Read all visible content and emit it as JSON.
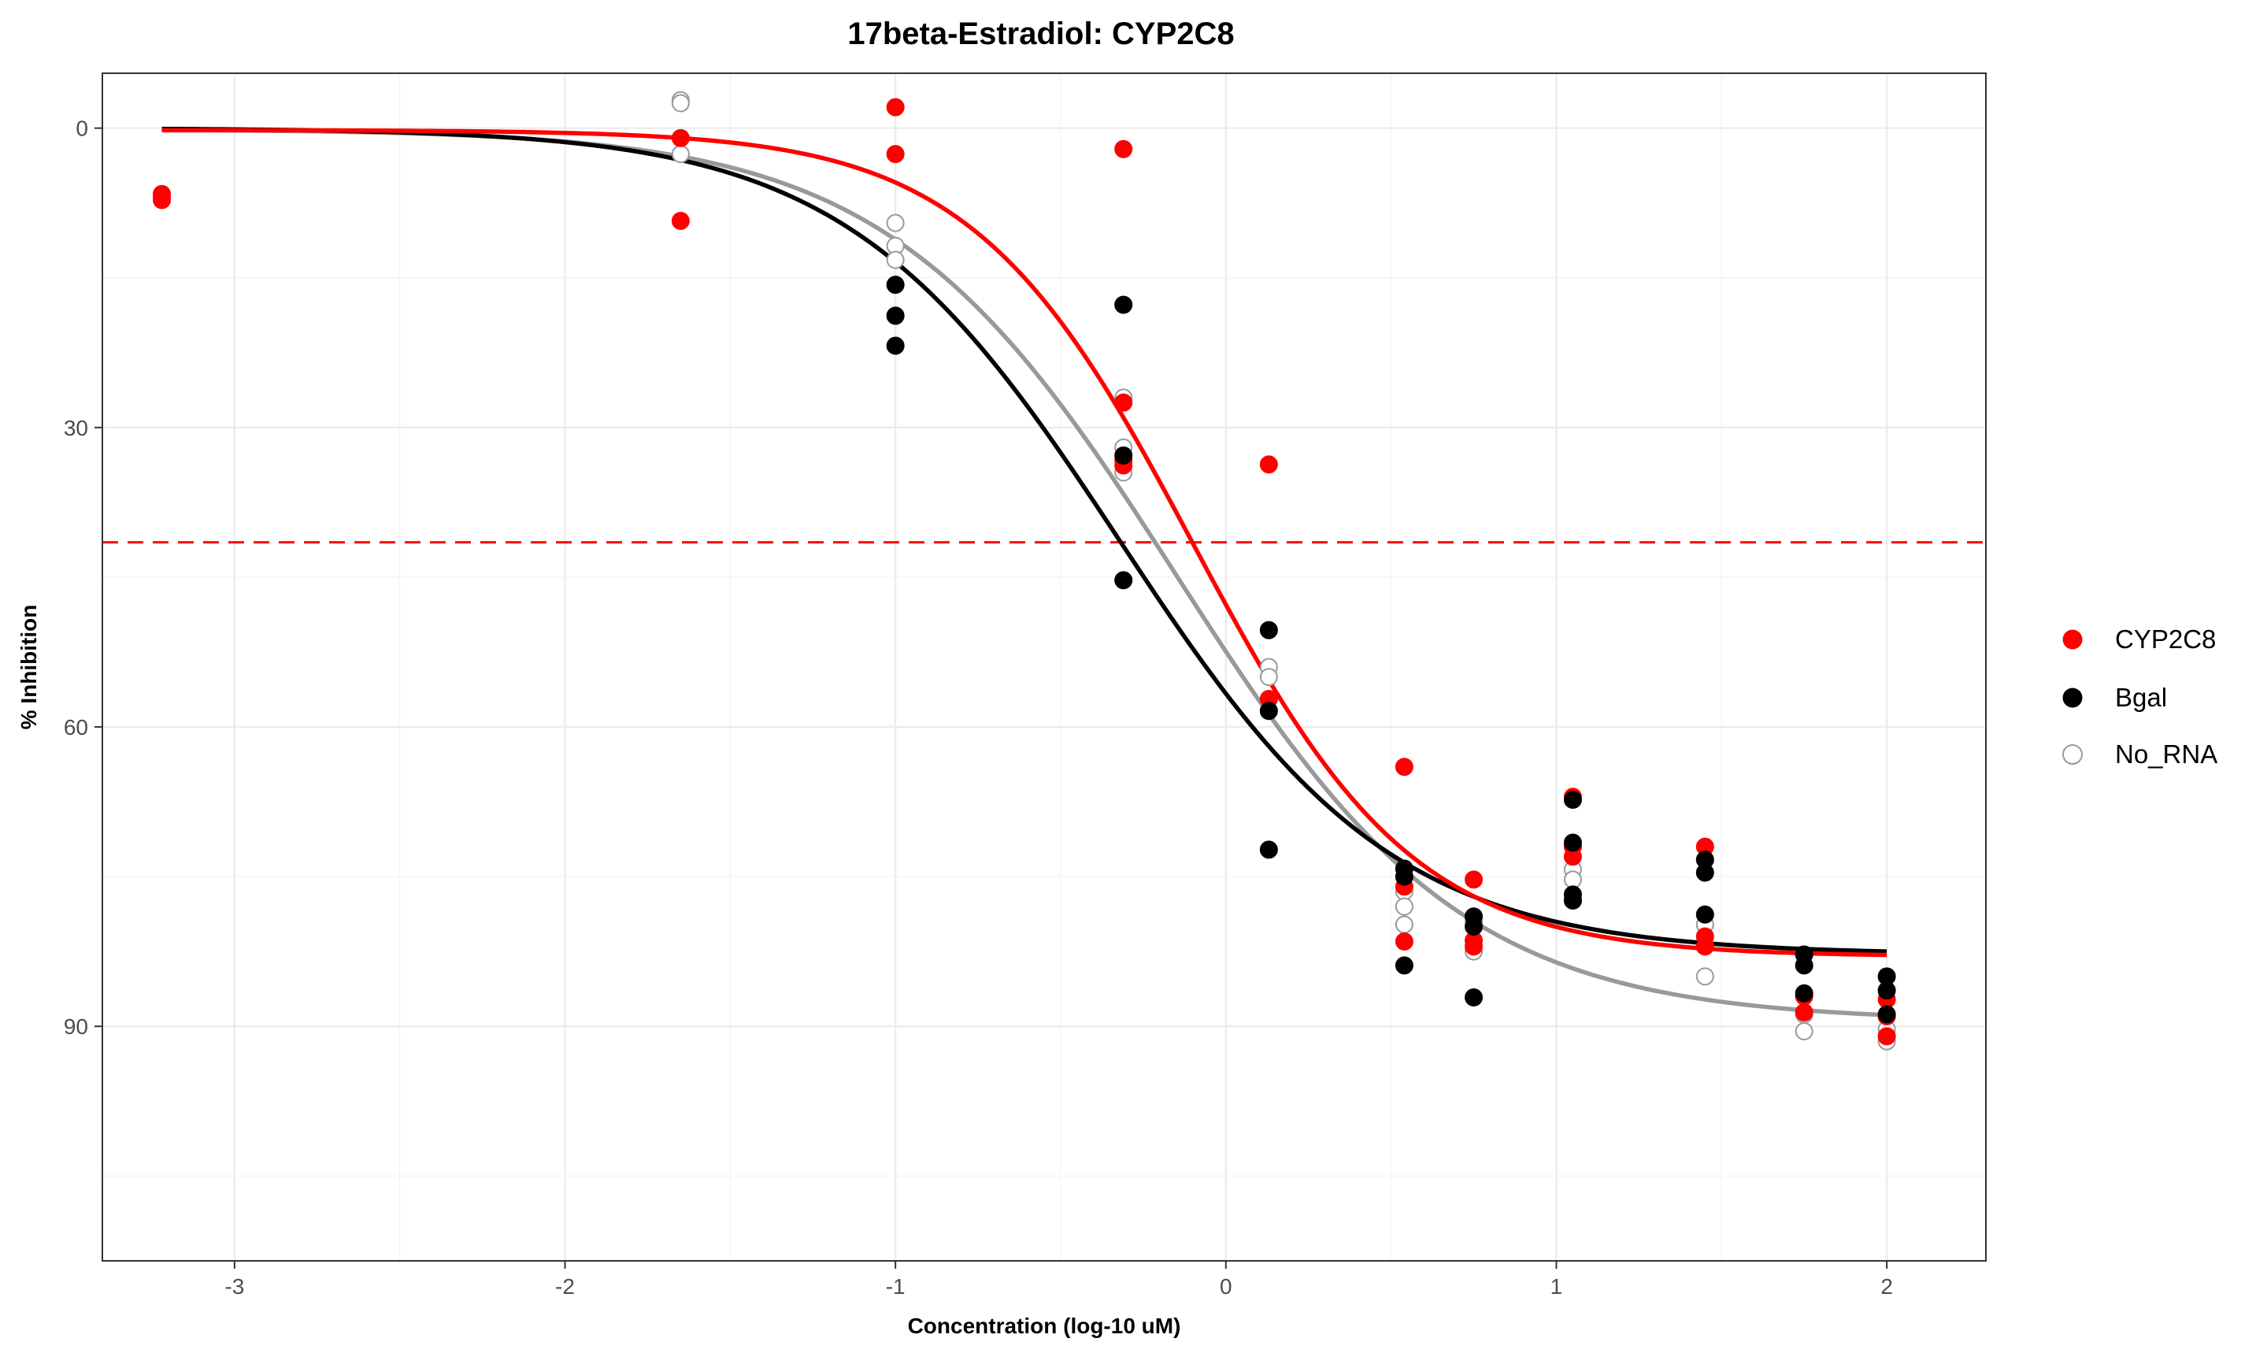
{
  "chart_data": {
    "type": "scatter",
    "title": "17beta-Estradiol: CYP2C8",
    "xlabel": "Concentration (log-10 uM)",
    "ylabel": "% Inhibition",
    "xlim": [
      -3.4,
      2.3
    ],
    "ylim": [
      -5.5,
      113.5
    ],
    "y_reversed": true,
    "x_ticks": [
      -3,
      -2,
      -1,
      0,
      1,
      2
    ],
    "x_tick_labels": [
      "-3",
      "-2",
      "-1",
      "0",
      "1",
      "2"
    ],
    "y_ticks": [
      0,
      30,
      60,
      90
    ],
    "y_tick_labels": [
      "0",
      "30",
      "60",
      "90"
    ],
    "grid": true,
    "legend_position": "right",
    "reference_line": {
      "y": 41.5,
      "style": "dashed",
      "color": "#ff0000"
    },
    "series": [
      {
        "name": "CYP2C8",
        "color": "#ff0000",
        "marker": "filled-circle",
        "points": [
          [
            -3.22,
            6.6
          ],
          [
            -3.22,
            7.0
          ],
          [
            -3.22,
            7.2
          ],
          [
            -1.65,
            1.0
          ],
          [
            -1.65,
            9.3
          ],
          [
            -1.0,
            -2.1
          ],
          [
            -1.0,
            2.6
          ],
          [
            -0.31,
            2.1
          ],
          [
            -0.31,
            27.5
          ],
          [
            -0.31,
            33.3
          ],
          [
            -0.31,
            33.8
          ],
          [
            0.13,
            33.7
          ],
          [
            0.13,
            57.2
          ],
          [
            0.54,
            64.0
          ],
          [
            0.54,
            76.0
          ],
          [
            0.54,
            81.5
          ],
          [
            0.75,
            75.3
          ],
          [
            0.75,
            81.4
          ],
          [
            0.75,
            82.0
          ],
          [
            1.05,
            67.0
          ],
          [
            1.05,
            72.0
          ],
          [
            1.05,
            73.0
          ],
          [
            1.45,
            72.0
          ],
          [
            1.45,
            81.0
          ],
          [
            1.45,
            82.0
          ],
          [
            1.75,
            87.0
          ],
          [
            1.75,
            88.6
          ],
          [
            2.0,
            87.3
          ],
          [
            2.0,
            89.0
          ],
          [
            2.0,
            91.0
          ]
        ],
        "fit": {
          "top": 0.2,
          "bottom": 83.0,
          "log_ic50": -0.1,
          "hill": 1.3
        }
      },
      {
        "name": "Bgal",
        "color": "#000000",
        "marker": "filled-circle",
        "points": [
          [
            -1.0,
            15.7
          ],
          [
            -1.0,
            18.8
          ],
          [
            -1.0,
            21.8
          ],
          [
            -0.31,
            17.7
          ],
          [
            -0.31,
            32.8
          ],
          [
            -0.31,
            45.3
          ],
          [
            0.13,
            50.3
          ],
          [
            0.13,
            58.4
          ],
          [
            0.13,
            72.3
          ],
          [
            0.54,
            74.2
          ],
          [
            0.54,
            75.0
          ],
          [
            0.54,
            83.9
          ],
          [
            0.75,
            79.0
          ],
          [
            0.75,
            80.0
          ],
          [
            0.75,
            87.1
          ],
          [
            1.05,
            67.3
          ],
          [
            1.05,
            71.6
          ],
          [
            1.05,
            76.8
          ],
          [
            1.05,
            77.4
          ],
          [
            1.45,
            73.3
          ],
          [
            1.45,
            74.6
          ],
          [
            1.45,
            78.8
          ],
          [
            1.75,
            82.8
          ],
          [
            1.75,
            83.9
          ],
          [
            1.75,
            86.7
          ],
          [
            2.0,
            85.0
          ],
          [
            2.0,
            86.4
          ],
          [
            2.0,
            88.8
          ]
        ],
        "fit": {
          "top": 0.0,
          "bottom": 82.8,
          "log_ic50": -0.32,
          "hill": 1.05
        }
      },
      {
        "name": "No_RNA",
        "color": "#999999",
        "marker": "open-circle",
        "points": [
          [
            -1.65,
            -2.8
          ],
          [
            -1.65,
            -2.5
          ],
          [
            -1.65,
            2.6
          ],
          [
            -1.0,
            9.5
          ],
          [
            -1.0,
            11.8
          ],
          [
            -1.0,
            13.2
          ],
          [
            -0.31,
            27.0
          ],
          [
            -0.31,
            32.0
          ],
          [
            -0.31,
            34.5
          ],
          [
            0.13,
            54.0
          ],
          [
            0.13,
            55.0
          ],
          [
            0.54,
            76.5
          ],
          [
            0.54,
            78.0
          ],
          [
            0.54,
            79.8
          ],
          [
            0.75,
            79.5
          ],
          [
            0.75,
            82.5
          ],
          [
            1.05,
            74.3
          ],
          [
            1.05,
            75.3
          ],
          [
            1.05,
            77.2
          ],
          [
            1.45,
            79.8
          ],
          [
            1.45,
            85.0
          ],
          [
            1.75,
            88.8
          ],
          [
            1.75,
            90.5
          ],
          [
            2.0,
            90.3
          ],
          [
            2.0,
            91.0
          ],
          [
            2.0,
            91.5
          ]
        ],
        "fit": {
          "top": 0.1,
          "bottom": 89.5,
          "log_ic50": -0.15,
          "hill": 1.0
        }
      }
    ]
  }
}
